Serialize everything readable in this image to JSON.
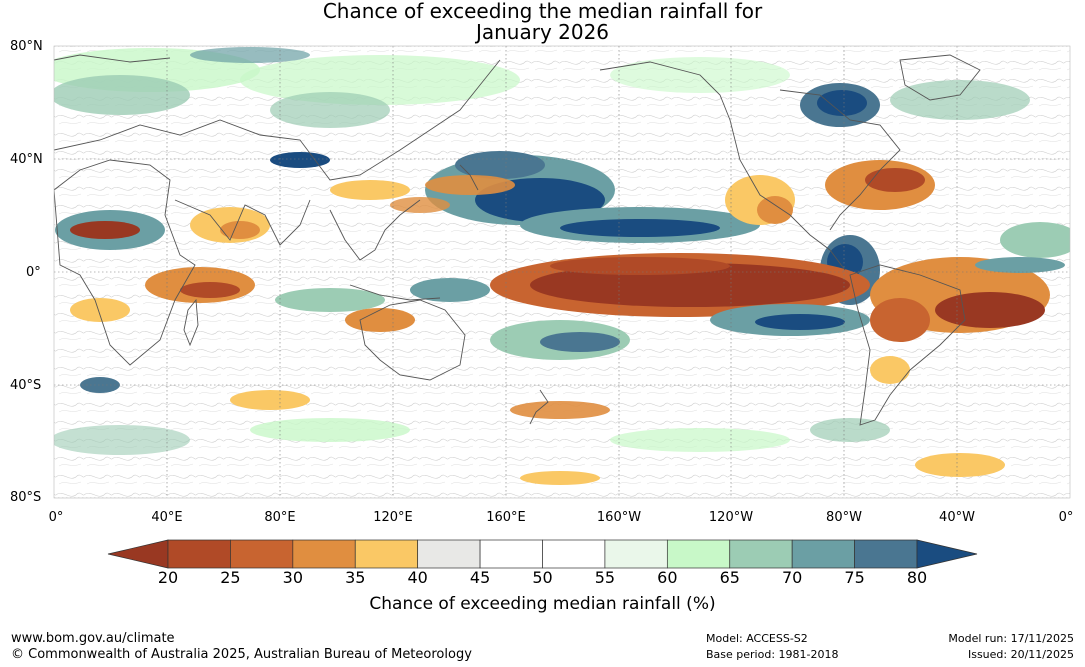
{
  "title": {
    "line1": "Chance of exceeding the median rainfall for",
    "line2": "January 2026"
  },
  "map": {
    "lat_labels": [
      "80°N",
      "40°N",
      "0°",
      "40°S",
      "80°S"
    ],
    "lon_labels": [
      "0°",
      "40°E",
      "80°E",
      "120°E",
      "160°E",
      "160°W",
      "120°W",
      "80°W",
      "40°W",
      "0°"
    ]
  },
  "colorbar": {
    "ticks": [
      "20",
      "25",
      "30",
      "35",
      "40",
      "45",
      "50",
      "55",
      "60",
      "65",
      "70",
      "75",
      "80"
    ],
    "colors": [
      "#993822",
      "#b04a27",
      "#c86430",
      "#e08e40",
      "#fac865",
      "#e8e8e6",
      "#ffffff",
      "#ffffff",
      "#eaf7ea",
      "#c8f8c8",
      "#9cccb4",
      "#6b9fa4",
      "#4a7691",
      "#1a4c80"
    ],
    "label": "Chance of exceeding median rainfall (%)"
  },
  "footer": {
    "website": "www.bom.gov.au/climate",
    "copyright": "© Commonwealth of Australia 2025, Australian Bureau of Meteorology",
    "model": "Model: ACCESS-S2",
    "base_period": "Base period: 1981-2018",
    "model_run": "Model run: 17/11/2025",
    "issued": "Issued: 20/11/2025"
  }
}
